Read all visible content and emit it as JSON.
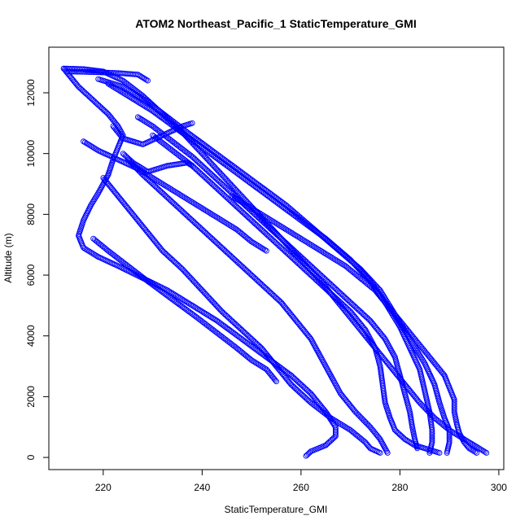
{
  "chart_data": {
    "type": "scatter",
    "title": "ATOM2 Northeast_Pacific_1 StaticTemperature_GMI",
    "xlabel": "StaticTemperature_GMI",
    "ylabel": "Altitude (m)",
    "xlim": [
      209,
      301
    ],
    "ylim": [
      -400,
      13500
    ],
    "xticks": [
      220,
      240,
      260,
      280,
      300
    ],
    "yticks": [
      0,
      2000,
      4000,
      6000,
      8000,
      10000,
      12000
    ],
    "grid": false,
    "marker": "open-circle",
    "color": "#0000ff",
    "series": [
      {
        "points": [
          [
            297.5,
            150
          ],
          [
            296,
            300
          ],
          [
            293,
            600
          ],
          [
            290,
            900
          ],
          [
            287,
            1300
          ],
          [
            284,
            1800
          ],
          [
            281,
            2400
          ],
          [
            278,
            3000
          ],
          [
            275,
            3600
          ],
          [
            272,
            4200
          ],
          [
            268,
            5000
          ],
          [
            264,
            5800
          ],
          [
            260,
            6500
          ],
          [
            256,
            7200
          ],
          [
            252,
            7900
          ],
          [
            248,
            8600
          ],
          [
            244,
            9300
          ],
          [
            240,
            10000
          ],
          [
            236,
            10700
          ],
          [
            232,
            11300
          ],
          [
            228,
            11900
          ],
          [
            224,
            12400
          ],
          [
            220,
            12700
          ],
          [
            216,
            12780
          ],
          [
            212,
            12800
          ]
        ]
      },
      {
        "points": [
          [
            212,
            12800
          ],
          [
            213.5,
            12500
          ],
          [
            215,
            12200
          ],
          [
            217,
            11900
          ],
          [
            219,
            11600
          ],
          [
            221,
            11300
          ],
          [
            223,
            10900
          ],
          [
            224,
            10600
          ],
          [
            223,
            10200
          ],
          [
            222,
            9800
          ],
          [
            221,
            9300
          ]
        ]
      },
      {
        "points": [
          [
            221,
            9300
          ],
          [
            219,
            8700
          ],
          [
            217.5,
            8300
          ],
          [
            216,
            7800
          ],
          [
            215,
            7300
          ],
          [
            216,
            6900
          ],
          [
            219,
            6600
          ],
          [
            223,
            6300
          ],
          [
            228,
            5900
          ],
          [
            233,
            5500
          ],
          [
            238,
            5000
          ],
          [
            243,
            4500
          ],
          [
            248,
            3900
          ],
          [
            253,
            3300
          ],
          [
            258,
            2700
          ],
          [
            262,
            2100
          ],
          [
            265,
            1500
          ],
          [
            267,
            1000
          ],
          [
            267,
            700
          ],
          [
            265,
            400
          ],
          [
            262,
            200
          ],
          [
            261,
            50
          ]
        ]
      },
      {
        "points": [
          [
            213,
            12700
          ],
          [
            218,
            12680
          ],
          [
            223,
            12650
          ],
          [
            227,
            12600
          ],
          [
            229,
            12400
          ]
        ]
      },
      {
        "points": [
          [
            219,
            12450
          ],
          [
            224,
            12200
          ],
          [
            229,
            11700
          ],
          [
            233,
            11200
          ],
          [
            237,
            10700
          ],
          [
            242,
            10100
          ],
          [
            247,
            9500
          ],
          [
            252,
            8900
          ],
          [
            257,
            8300
          ],
          [
            262,
            7600
          ],
          [
            267,
            6900
          ],
          [
            272,
            6200
          ],
          [
            276,
            5500
          ],
          [
            279,
            4700
          ],
          [
            282,
            3900
          ],
          [
            285,
            3100
          ],
          [
            287,
            2400
          ],
          [
            288,
            1800
          ],
          [
            289,
            1300
          ],
          [
            290,
            900
          ],
          [
            290,
            500
          ],
          [
            289.5,
            150
          ]
        ]
      },
      {
        "points": [
          [
            221,
            12300
          ],
          [
            225,
            11900
          ],
          [
            230,
            11400
          ],
          [
            235,
            10800
          ],
          [
            240,
            10200
          ],
          [
            245,
            9600
          ],
          [
            250,
            9000
          ],
          [
            255,
            8400
          ],
          [
            260,
            7800
          ],
          [
            265,
            7200
          ],
          [
            270,
            6500
          ],
          [
            274,
            5800
          ],
          [
            277,
            5100
          ],
          [
            280,
            4300
          ],
          [
            282,
            3600
          ],
          [
            284,
            2900
          ],
          [
            285,
            2200
          ],
          [
            286,
            1500
          ],
          [
            286.5,
            900
          ],
          [
            286.5,
            500
          ],
          [
            286,
            150
          ]
        ]
      },
      {
        "points": [
          [
            216,
            10400
          ],
          [
            219,
            10100
          ],
          [
            223,
            9800
          ],
          [
            227,
            9500
          ],
          [
            231,
            9100
          ],
          [
            235,
            8700
          ],
          [
            239,
            8300
          ],
          [
            243,
            7900
          ],
          [
            247,
            7500
          ],
          [
            250,
            7100
          ],
          [
            253,
            6800
          ]
        ]
      },
      {
        "points": [
          [
            218,
            7200
          ],
          [
            221,
            6800
          ],
          [
            225,
            6300
          ],
          [
            229,
            5800
          ],
          [
            234,
            5200
          ],
          [
            239,
            4600
          ],
          [
            243,
            4100
          ],
          [
            247,
            3600
          ],
          [
            250,
            3200
          ],
          [
            253,
            2900
          ],
          [
            255,
            2500
          ]
        ]
      },
      {
        "points": [
          [
            220,
            9200
          ],
          [
            223,
            8600
          ],
          [
            226,
            8000
          ],
          [
            229,
            7400
          ],
          [
            232,
            6800
          ],
          [
            236,
            6200
          ],
          [
            240,
            5500
          ],
          [
            244,
            4800
          ],
          [
            248,
            4200
          ],
          [
            252,
            3600
          ],
          [
            255,
            3000
          ],
          [
            258,
            2400
          ],
          [
            262,
            1800
          ],
          [
            266,
            1300
          ],
          [
            270,
            900
          ],
          [
            273,
            500
          ],
          [
            274,
            300
          ],
          [
            276,
            150
          ]
        ]
      },
      {
        "points": [
          [
            225,
            9800
          ],
          [
            228,
            9300
          ],
          [
            232,
            8700
          ],
          [
            236,
            8100
          ],
          [
            240,
            7500
          ],
          [
            244,
            6900
          ],
          [
            248,
            6300
          ],
          [
            252,
            5700
          ],
          [
            256,
            5100
          ],
          [
            259,
            4500
          ],
          [
            262,
            3900
          ],
          [
            264,
            3300
          ],
          [
            266,
            2700
          ],
          [
            268,
            2100
          ],
          [
            271,
            1500
          ],
          [
            274,
            1000
          ],
          [
            276,
            600
          ],
          [
            277,
            300
          ],
          [
            277.5,
            150
          ]
        ]
      },
      {
        "points": [
          [
            222,
            10900
          ],
          [
            224,
            10500
          ],
          [
            228,
            10300
          ],
          [
            232,
            10600
          ],
          [
            236,
            10900
          ],
          [
            238,
            11000
          ]
        ]
      },
      {
        "points": [
          [
            224,
            10000
          ],
          [
            226,
            9700
          ],
          [
            229,
            9400
          ],
          [
            233,
            9600
          ],
          [
            237,
            9700
          ],
          [
            238,
            9600
          ]
        ]
      },
      {
        "points": [
          [
            227,
            11200
          ],
          [
            230,
            10900
          ],
          [
            234,
            10400
          ],
          [
            238,
            9900
          ],
          [
            242,
            9300
          ],
          [
            246,
            8700
          ],
          [
            250,
            8100
          ],
          [
            254,
            7500
          ],
          [
            258,
            6900
          ],
          [
            262,
            6300
          ],
          [
            266,
            5700
          ],
          [
            270,
            5100
          ],
          [
            274,
            4500
          ],
          [
            277,
            3900
          ],
          [
            279,
            3300
          ],
          [
            280,
            2700
          ],
          [
            281,
            2100
          ],
          [
            282,
            1500
          ],
          [
            282.5,
            1000
          ],
          [
            283,
            600
          ],
          [
            283.5,
            300
          ]
        ]
      },
      {
        "points": [
          [
            230,
            10600
          ],
          [
            234,
            10100
          ],
          [
            238,
            9600
          ],
          [
            242,
            9000
          ],
          [
            246,
            8400
          ],
          [
            250,
            7800
          ],
          [
            254,
            7200
          ],
          [
            258,
            6600
          ],
          [
            262,
            6000
          ],
          [
            266,
            5400
          ],
          [
            270,
            4800
          ],
          [
            273,
            4200
          ],
          [
            275,
            3600
          ],
          [
            276,
            3000
          ],
          [
            276.5,
            2400
          ],
          [
            277,
            1800
          ],
          [
            278,
            1300
          ],
          [
            279,
            900
          ],
          [
            281,
            600
          ],
          [
            283,
            400
          ],
          [
            285,
            300
          ],
          [
            287,
            200
          ],
          [
            288,
            150
          ]
        ]
      },
      {
        "points": [
          [
            246,
            8600
          ],
          [
            249,
            8300
          ],
          [
            253,
            7900
          ],
          [
            257,
            7500
          ],
          [
            261,
            7100
          ],
          [
            265,
            6700
          ],
          [
            269,
            6300
          ],
          [
            272,
            5900
          ],
          [
            275,
            5500
          ],
          [
            277,
            5100
          ],
          [
            279,
            4700
          ],
          [
            281,
            4300
          ],
          [
            283,
            3900
          ],
          [
            285,
            3500
          ],
          [
            287,
            3100
          ],
          [
            289,
            2700
          ],
          [
            290,
            2300
          ],
          [
            291,
            1900
          ],
          [
            291,
            1500
          ],
          [
            291.5,
            1100
          ],
          [
            292,
            800
          ],
          [
            293,
            500
          ],
          [
            294,
            300
          ],
          [
            295.5,
            150
          ]
        ]
      }
    ]
  }
}
